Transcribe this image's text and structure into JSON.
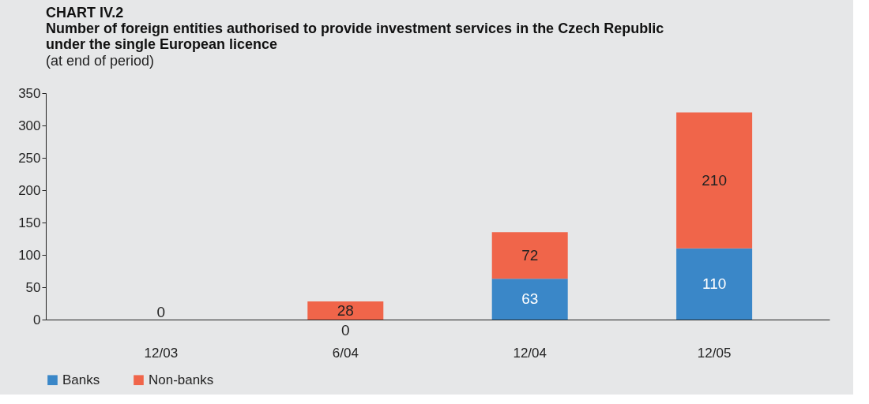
{
  "chart_data": {
    "type": "bar",
    "stacked": true,
    "annotations": [
      "CHART IV.2"
    ],
    "title": "Number of foreign entities authorised to provide investment services in the Czech Republic under the single European licence",
    "subtitle": "(at end of period)",
    "categories": [
      "12/03",
      "6/04",
      "12/04",
      "12/05"
    ],
    "series": [
      {
        "name": "Banks",
        "color": "#3a87c8",
        "values": [
          0,
          0,
          63,
          110
        ],
        "value_labels": [
          null,
          "0",
          "63",
          "110"
        ]
      },
      {
        "name": "Non-banks",
        "color": "#f0654a",
        "values": [
          0,
          28,
          72,
          210
        ],
        "value_labels": [
          "0",
          "28",
          "72",
          "210"
        ]
      }
    ],
    "ylim": [
      0,
      350
    ],
    "yticks": [
      0,
      50,
      100,
      150,
      200,
      250,
      300,
      350
    ],
    "grid": false,
    "legend": "bottom"
  }
}
